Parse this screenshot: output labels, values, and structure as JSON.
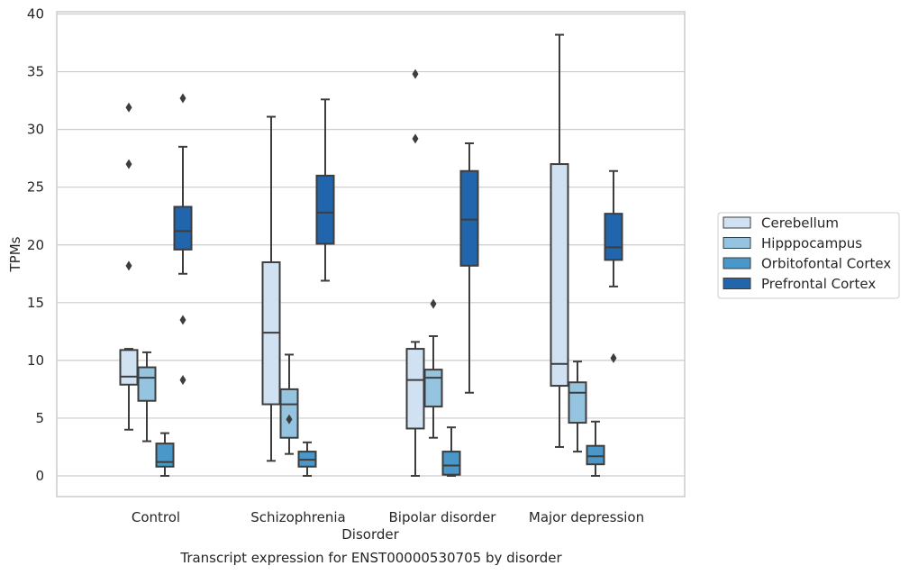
{
  "chart_data": {
    "type": "box",
    "caption": "Transcript expression for ENST00000530705 by disorder",
    "xlabel": "Disorder",
    "ylabel": "TPMs",
    "ylim": [
      -1.8,
      40.2
    ],
    "yticks": [
      0,
      5,
      10,
      15,
      20,
      25,
      30,
      35,
      40
    ],
    "grid": "horizontal",
    "legend_position": "right",
    "categories": [
      "Control",
      "Schizophrenia",
      "Bipolar disorder",
      "Major depression"
    ],
    "series": [
      {
        "name": "Cerebellum",
        "color": "#d0e1f2",
        "boxes": [
          {
            "whislo": 4.0,
            "q1": 7.9,
            "med": 8.6,
            "q3": 10.9,
            "whishi": 11.0,
            "fliers": [
              18.2,
              27.0,
              31.9
            ]
          },
          {
            "whislo": 1.3,
            "q1": 6.2,
            "med": 12.4,
            "q3": 18.5,
            "whishi": 31.1,
            "fliers": []
          },
          {
            "whislo": 0.0,
            "q1": 4.1,
            "med": 8.3,
            "q3": 11.0,
            "whishi": 11.6,
            "fliers": [
              29.2,
              34.8
            ]
          },
          {
            "whislo": 2.5,
            "q1": 7.8,
            "med": 9.7,
            "q3": 27.0,
            "whishi": 38.2,
            "fliers": []
          }
        ]
      },
      {
        "name": "Hipppocampus",
        "color": "#94c4df",
        "boxes": [
          {
            "whislo": 3.0,
            "q1": 6.5,
            "med": 8.5,
            "q3": 9.4,
            "whishi": 10.7,
            "fliers": []
          },
          {
            "whislo": 1.9,
            "q1": 3.3,
            "med": 6.2,
            "q3": 7.5,
            "whishi": 10.5,
            "fliers": [
              4.9
            ]
          },
          {
            "whislo": 3.3,
            "q1": 6.0,
            "med": 8.5,
            "q3": 9.2,
            "whishi": 12.1,
            "fliers": [
              14.9
            ]
          },
          {
            "whislo": 2.1,
            "q1": 4.6,
            "med": 7.2,
            "q3": 8.1,
            "whishi": 9.9,
            "fliers": []
          }
        ]
      },
      {
        "name": "Orbitofontal Cortex",
        "color": "#4a98c9",
        "boxes": [
          {
            "whislo": 0.0,
            "q1": 0.8,
            "med": 1.2,
            "q3": 2.8,
            "whishi": 3.7,
            "fliers": []
          },
          {
            "whislo": 0.0,
            "q1": 0.8,
            "med": 1.4,
            "q3": 2.1,
            "whishi": 2.9,
            "fliers": []
          },
          {
            "whislo": 0.0,
            "q1": 0.1,
            "med": 0.9,
            "q3": 2.1,
            "whishi": 4.2,
            "fliers": []
          },
          {
            "whislo": 0.0,
            "q1": 1.0,
            "med": 1.7,
            "q3": 2.6,
            "whishi": 4.7,
            "fliers": []
          }
        ]
      },
      {
        "name": "Prefrontal Cortex",
        "color": "#2166ac",
        "boxes": [
          {
            "whislo": 17.5,
            "q1": 19.6,
            "med": 21.2,
            "q3": 23.3,
            "whishi": 28.5,
            "fliers": [
              8.3,
              13.5,
              32.7
            ]
          },
          {
            "whislo": 16.9,
            "q1": 20.1,
            "med": 22.8,
            "q3": 26.0,
            "whishi": 32.6,
            "fliers": []
          },
          {
            "whislo": 7.2,
            "q1": 18.2,
            "med": 22.2,
            "q3": 26.4,
            "whishi": 28.8,
            "fliers": []
          },
          {
            "whislo": 16.4,
            "q1": 18.7,
            "med": 19.8,
            "q3": 22.7,
            "whishi": 26.4,
            "fliers": [
              10.2
            ]
          }
        ]
      }
    ]
  }
}
